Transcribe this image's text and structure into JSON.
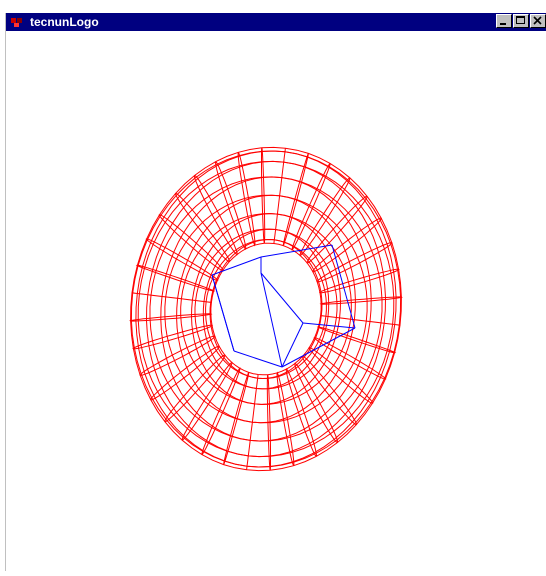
{
  "window": {
    "title": "tecnunLogo"
  },
  "icons": {
    "app": "app-icon",
    "minimize": "minimize-icon",
    "maximize": "maximize-icon",
    "close": "close-icon"
  },
  "colors": {
    "titlebar": "#000080",
    "torus_wire": "#ff0000",
    "cube_wire": "#0000ff",
    "background": "#ffffff"
  }
}
